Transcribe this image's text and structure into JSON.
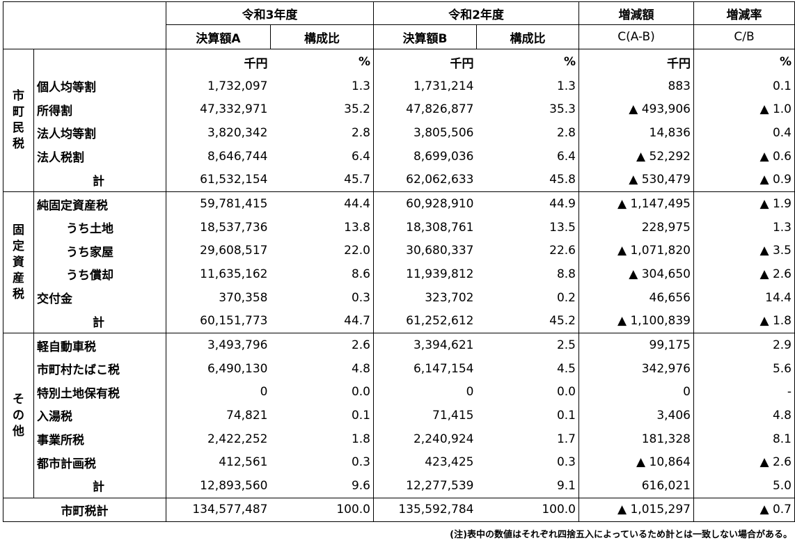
{
  "header": {
    "r3": "令和3年度",
    "r2": "令和2年度",
    "diff": "増減額",
    "rate": "増減率",
    "amtA": "決算額A",
    "ratio": "構成比",
    "amtB": "決算額B",
    "diff_sub": "C(A-B)",
    "rate_sub": "C/B"
  },
  "units": {
    "yen": "千円",
    "pct": "%"
  },
  "groups": [
    {
      "name": "市町民税",
      "rows": [
        {
          "label": "個人均等割",
          "a": "1,732,097",
          "ar": "1.3",
          "b": "1,731,214",
          "br": "1.3",
          "c": "883",
          "cr": "0.1"
        },
        {
          "label": "所得割",
          "a": "47,332,971",
          "ar": "35.2",
          "b": "47,826,877",
          "br": "35.3",
          "c": "▲ 493,906",
          "cr": "▲ 1.0"
        },
        {
          "label": "法人均等割",
          "a": "3,820,342",
          "ar": "2.8",
          "b": "3,805,506",
          "br": "2.8",
          "c": "14,836",
          "cr": "0.4"
        },
        {
          "label": "法人税割",
          "a": "8,646,744",
          "ar": "6.4",
          "b": "8,699,036",
          "br": "6.4",
          "c": "▲ 52,292",
          "cr": "▲ 0.6"
        }
      ],
      "total": {
        "label": "計",
        "a": "61,532,154",
        "ar": "45.7",
        "b": "62,062,633",
        "br": "45.8",
        "c": "▲ 530,479",
        "cr": "▲ 0.9"
      }
    },
    {
      "name": "固定資産税",
      "rows": [
        {
          "label": "純固定資産税",
          "a": "59,781,415",
          "ar": "44.4",
          "b": "60,928,910",
          "br": "44.9",
          "c": "▲ 1,147,495",
          "cr": "▲ 1.9"
        },
        {
          "label": "うち土地",
          "indent": true,
          "a": "18,537,736",
          "ar": "13.8",
          "b": "18,308,761",
          "br": "13.5",
          "c": "228,975",
          "cr": "1.3"
        },
        {
          "label": "うち家屋",
          "indent": true,
          "a": "29,608,517",
          "ar": "22.0",
          "b": "30,680,337",
          "br": "22.6",
          "c": "▲ 1,071,820",
          "cr": "▲ 3.5"
        },
        {
          "label": "うち償却",
          "indent": true,
          "a": "11,635,162",
          "ar": "8.6",
          "b": "11,939,812",
          "br": "8.8",
          "c": "▲ 304,650",
          "cr": "▲ 2.6"
        },
        {
          "label": "交付金",
          "a": "370,358",
          "ar": "0.3",
          "b": "323,702",
          "br": "0.2",
          "c": "46,656",
          "cr": "14.4"
        }
      ],
      "total": {
        "label": "計",
        "a": "60,151,773",
        "ar": "44.7",
        "b": "61,252,612",
        "br": "45.2",
        "c": "▲ 1,100,839",
        "cr": "▲ 1.8"
      }
    },
    {
      "name": "その他",
      "rows": [
        {
          "label": "軽自動車税",
          "a": "3,493,796",
          "ar": "2.6",
          "b": "3,394,621",
          "br": "2.5",
          "c": "99,175",
          "cr": "2.9"
        },
        {
          "label": "市町村たばこ税",
          "a": "6,490,130",
          "ar": "4.8",
          "b": "6,147,154",
          "br": "4.5",
          "c": "342,976",
          "cr": "5.6"
        },
        {
          "label": "特別土地保有税",
          "a": "0",
          "ar": "0.0",
          "b": "0",
          "br": "0.0",
          "c": "0",
          "cr": "-"
        },
        {
          "label": "入湯税",
          "a": "74,821",
          "ar": "0.1",
          "b": "71,415",
          "br": "0.1",
          "c": "3,406",
          "cr": "4.8"
        },
        {
          "label": "事業所税",
          "a": "2,422,252",
          "ar": "1.8",
          "b": "2,240,924",
          "br": "1.7",
          "c": "181,328",
          "cr": "8.1"
        },
        {
          "label": "都市計画税",
          "a": "412,561",
          "ar": "0.3",
          "b": "423,425",
          "br": "0.3",
          "c": "▲ 10,864",
          "cr": "▲ 2.6"
        }
      ],
      "total": {
        "label": "計",
        "a": "12,893,560",
        "ar": "9.6",
        "b": "12,277,539",
        "br": "9.1",
        "c": "616,021",
        "cr": "5.0"
      }
    }
  ],
  "grand": {
    "label": "市町税計",
    "a": "134,577,487",
    "ar": "100.0",
    "b": "135,592,784",
    "br": "100.0",
    "c": "▲ 1,015,297",
    "cr": "▲ 0.7"
  },
  "note": "(注)表中の数値はそれぞれ四捨五入によっているため計とは一致しない場合がある。"
}
